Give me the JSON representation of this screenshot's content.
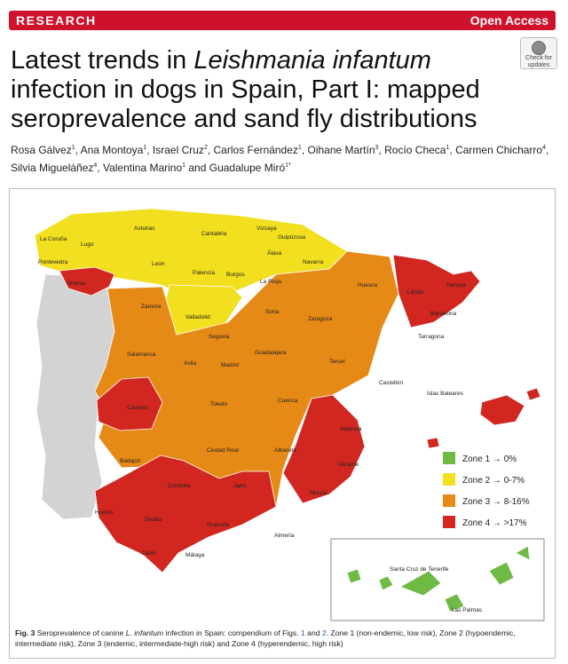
{
  "banner": {
    "section": "RESEARCH",
    "access": "Open Access"
  },
  "title": {
    "part1": "Latest trends in ",
    "italic": "Leishmania infantum",
    "part2": " infection in dogs in Spain, Part I: mapped seroprevalence and sand fly distributions"
  },
  "check_updates": {
    "line1": "Check for",
    "line2": "updates"
  },
  "authors": [
    {
      "name": "Rosa Gálvez",
      "aff": "1"
    },
    {
      "name": "Ana Montoya",
      "aff": "1"
    },
    {
      "name": "Israel Cruz",
      "aff": "2"
    },
    {
      "name": "Carlos Fernández",
      "aff": "1"
    },
    {
      "name": "Oihane Martín",
      "aff": "3"
    },
    {
      "name": "Rocío Checa",
      "aff": "1"
    },
    {
      "name": "Carmen Chicharro",
      "aff": "4"
    },
    {
      "name": "Silvia Migueláñez",
      "aff": "4"
    },
    {
      "name": "Valentina Marino",
      "aff": "1"
    },
    {
      "name": "Guadalupe Miró",
      "aff": "1*"
    }
  ],
  "colors": {
    "zone1": "#6fba44",
    "zone2": "#f2df1f",
    "zone3": "#e68a17",
    "zone4": "#d12720",
    "portugal": "#d3d3d3",
    "sea": "#ffffff"
  },
  "legend": [
    {
      "zone": "Zone 1",
      "value": "0%"
    },
    {
      "zone": "Zone 2",
      "value": "0-7%"
    },
    {
      "zone": "Zone 3",
      "value": "8-16%"
    },
    {
      "zone": "Zone 4",
      "value": ">17%"
    }
  ],
  "provinces": [
    "La Coruña",
    "Lugo",
    "Asturias",
    "Cantabria",
    "Vizcaya",
    "Guipúzcoa",
    "Pontevedra",
    "Orense",
    "León",
    "Palencia",
    "Burgos",
    "Álava",
    "Navarra",
    "La Rioja",
    "Huesca",
    "Lérida",
    "Gerona",
    "Zamora",
    "Valladolid",
    "Soria",
    "Zaragoza",
    "Barcelona",
    "Tarragona",
    "Segovia",
    "Salamanca",
    "Ávila",
    "Madrid",
    "Guadalajara",
    "Teruel",
    "Castellón",
    "Cáceres",
    "Toledo",
    "Cuenca",
    "Valencia",
    "Badajoz",
    "Ciudad Real",
    "Albacete",
    "Alicante",
    "Córdoba",
    "Jaén",
    "Murcia",
    "Huelva",
    "Sevilla",
    "Granada",
    "Almería",
    "Cádiz",
    "Málaga"
  ],
  "islands": {
    "baleares": "Islas Baleares",
    "tenerife": "Santa Cruz de Tenerife",
    "palmas": "Las Palmas"
  },
  "caption": {
    "label": "Fig. 3",
    "t1": " Seroprevalence of canine ",
    "italic": "L. infantum",
    "t2": " infection in Spain: compendium of Figs. ",
    "fig1": "1",
    "t3": " and ",
    "fig2": "2",
    "t4": ". Zone 1 (non-endemic, low risk), Zone 2 (hypoendemic, intermediate risk), Zone 3 (endemic, intermediate-high risk) and Zone 4 (hyperendemic, high risk)"
  }
}
